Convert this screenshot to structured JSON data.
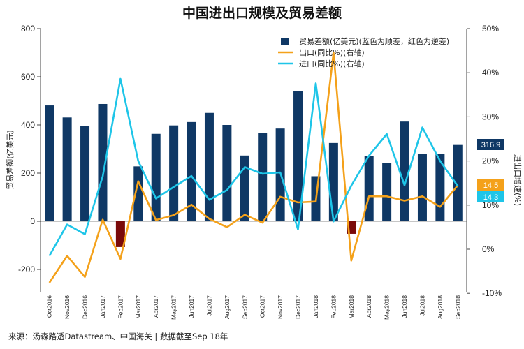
{
  "chart_data": {
    "type": "bar+line",
    "title": "中国进出口规模及贸易差额",
    "ylabel_left": "贸易差额(亿美元)",
    "ylabel_right": "进出口增速(%)",
    "ylim_left": [
      -200,
      800
    ],
    "yticks_left": [
      "-200",
      "0",
      "200",
      "400",
      "600",
      "800"
    ],
    "ylim_right": [
      -10,
      50
    ],
    "yticks_right": [
      "-10%",
      "0%",
      "10%",
      "20%",
      "30%",
      "40%",
      "50%"
    ],
    "categories": [
      "Oct2016",
      "Nov2016",
      "Dec2016",
      "Jan2017",
      "Feb2017",
      "Mar2017",
      "Apr2017",
      "May2017",
      "Jun2017",
      "Jul2017",
      "Aug2017",
      "Sep2017",
      "Oct2017",
      "Nov2017",
      "Dec2017",
      "Jan2018",
      "Feb2018",
      "Mar2018",
      "Apr2018",
      "May2018",
      "Jun2018",
      "Jul2018",
      "Aug2018",
      "Sep2018"
    ],
    "series": [
      {
        "name": "贸易差额(亿美元)(蓝色为顺差，红色为逆差)",
        "kind": "bar",
        "axis": "left",
        "color_positive": "#0f3865",
        "color_negative": "#7a0a0a",
        "values": [
          481,
          431,
          397,
          487,
          -107,
          228,
          363,
          398,
          412,
          450,
          400,
          273,
          367,
          385,
          542,
          187,
          325,
          -52,
          271,
          241,
          414,
          281,
          279,
          316.9
        ]
      },
      {
        "name": "出口(同比%)(右轴)",
        "kind": "line",
        "axis": "right",
        "color": "#f4a11a",
        "values": [
          -7.6,
          -1.5,
          -6.3,
          6.7,
          -2.2,
          15.4,
          6.6,
          7.7,
          10.1,
          6.9,
          5.0,
          7.8,
          6.0,
          11.9,
          10.6,
          10.8,
          44.5,
          -2.6,
          12.0,
          12.0,
          11.0,
          12.0,
          9.6,
          14.5
        ]
      },
      {
        "name": "进口(同比%)(右轴)",
        "kind": "line",
        "axis": "right",
        "color": "#1ec5e8",
        "values": [
          -1.5,
          5.6,
          3.4,
          16.5,
          38.6,
          20.0,
          11.5,
          14.1,
          16.6,
          11.2,
          13.4,
          18.6,
          17.1,
          17.4,
          4.5,
          37.6,
          6.3,
          14.4,
          21.2,
          26.1,
          14.5,
          27.6,
          20.0,
          14.3
        ]
      }
    ],
    "end_labels": [
      {
        "value": "316.9",
        "color": "#0f3865"
      },
      {
        "value": "14.5",
        "color": "#f4a11a"
      },
      {
        "value": "14.3",
        "color": "#1ec5e8"
      }
    ],
    "legend": "top-right",
    "grid": false
  },
  "source_note": "来源：汤森路透Datastream、中国海关 | 数据截至Sep 18年"
}
